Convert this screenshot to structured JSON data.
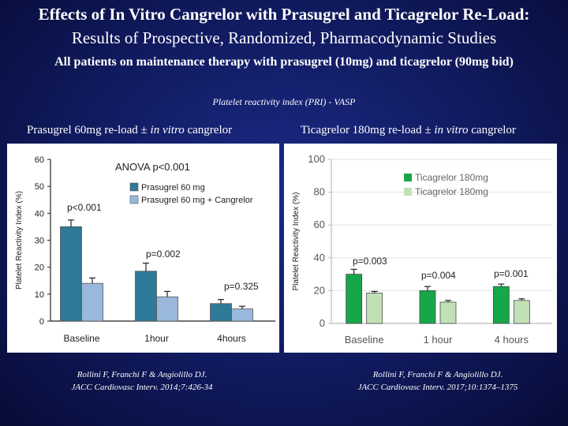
{
  "slide": {
    "title_line1": "Effects of In Vitro Cangrelor with Prasugrel and Ticagrelor Re-Load:",
    "title_line2": "Results of Prospective, Randomized, Pharmacodynamic Studies",
    "subtitle": "All patients on maintenance therapy with prasugrel (10mg) and ticagrelor (90mg bid)",
    "section_label": "Platelet reactivity index (PRI) - VASP",
    "left_panel_title_prefix": "Prasugrel 60mg re-load ± ",
    "left_panel_title_italic": "in vitro",
    "left_panel_title_suffix": " cangrelor",
    "right_panel_title_prefix": "Ticagrelor 180mg re-load ± ",
    "right_panel_title_italic": "in vitro",
    "right_panel_title_suffix": " cangrelor",
    "left_citation_line1": "Rollini F, Franchi F & Angiolillo DJ.",
    "left_citation_line2": "JACC Cardiovasc Interv. 2014;7:426-34",
    "right_citation_line1": "Rollini F, Franchi F & Angiolillo DJ.",
    "right_citation_line2": "JACC Cardiovasc Interv. 2017;10:1374–1375"
  },
  "colors": {
    "prasugrel": "#2e7a98",
    "prasugrel_cangrelor": "#9ab8dc",
    "ticagrelor": "#18a64a",
    "ticagrelor_cangrelor": "#c2e0b6"
  },
  "chart_data": [
    {
      "type": "bar",
      "categories": [
        "Baseline",
        "1hour",
        "4hours"
      ],
      "series": [
        {
          "name": "Prasugrel 60 mg",
          "values": [
            35,
            18.5,
            6.5
          ],
          "errors": [
            2.5,
            3,
            1.5
          ]
        },
        {
          "name": "Prasugrel 60 mg + Cangrelor",
          "values": [
            14,
            9,
            4.5
          ],
          "errors": [
            2,
            2,
            1
          ]
        }
      ],
      "ylim": [
        0,
        60
      ],
      "yticks": [
        0,
        10,
        20,
        30,
        40,
        50,
        60
      ],
      "ylabel": "Platelet Reactivity Index (%)",
      "xlabel": "",
      "annotations": [
        "ANOVA p<0.001",
        "p<0.001",
        "p=0.002",
        "p=0.325"
      ],
      "legend_position": "top-right",
      "grid": false
    },
    {
      "type": "bar",
      "categories": [
        "Baseline",
        "1 hour",
        "4 hours"
      ],
      "series": [
        {
          "name": "Ticagrelor 180mg",
          "values": [
            30,
            20,
            22.5
          ],
          "errors": [
            3,
            2.5,
            1.5
          ]
        },
        {
          "name": "Ticagrelor 180mg",
          "values": [
            18.5,
            13,
            14
          ],
          "errors": [
            1,
            1,
            1
          ]
        }
      ],
      "ylim": [
        0,
        100
      ],
      "yticks": [
        0,
        20,
        40,
        60,
        80,
        100
      ],
      "ylabel": "Platelet Reactivity Index (%)",
      "xlabel": "",
      "annotations": [
        "p=0.003",
        "p=0.004",
        "p=0.001"
      ],
      "legend_position": "top-left",
      "grid": true
    }
  ]
}
